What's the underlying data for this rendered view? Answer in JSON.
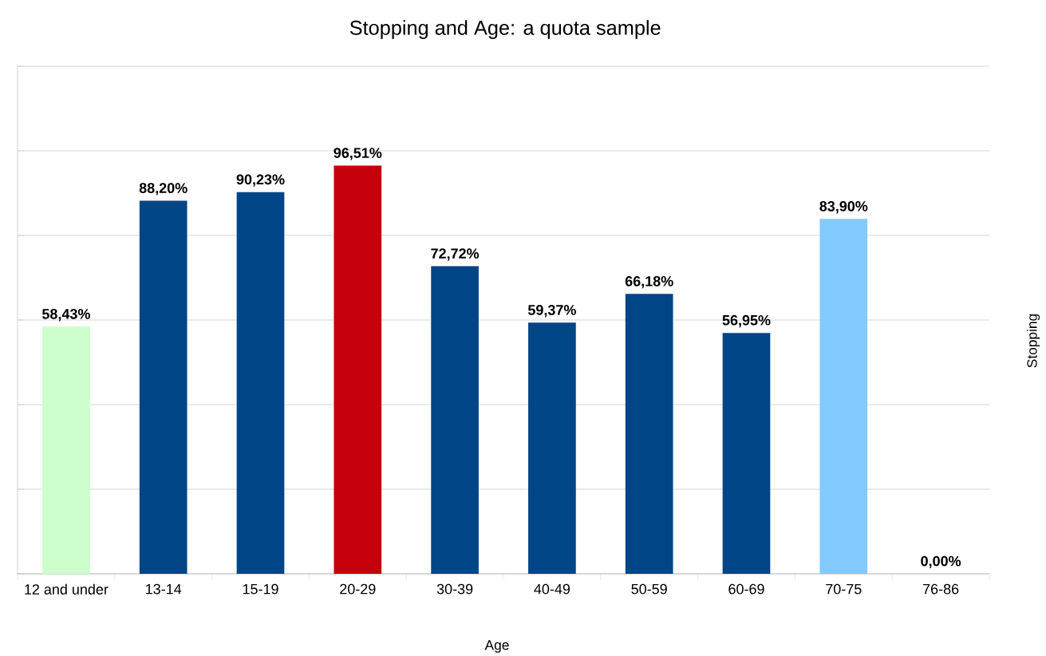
{
  "chart_data": {
    "type": "bar",
    "title": "Stopping and Age: a quota sample",
    "xlabel": "Age",
    "ylabel": "Stopping",
    "categories": [
      "12 and under",
      "13-14",
      "15-19",
      "20-29",
      "30-39",
      "40-49",
      "50-59",
      "60-69",
      "70-75",
      "76-86"
    ],
    "values": [
      58.43,
      88.2,
      90.23,
      96.51,
      72.72,
      59.37,
      66.18,
      56.95,
      83.9,
      0.0
    ],
    "colors": [
      "#ccffcc",
      "#004586",
      "#004586",
      "#c5000b",
      "#004586",
      "#004586",
      "#004586",
      "#004586",
      "#83caff",
      "#004586"
    ],
    "value_labels": [
      "58,43%",
      "88,20%",
      "90,23%",
      "96,51%",
      "72,72%",
      "59,37%",
      "66,18%",
      "56,95%",
      "83,90%",
      "0,00%"
    ],
    "ylim": [
      0,
      120
    ],
    "yticks": [
      {
        "value": 0,
        "label": null
      },
      {
        "value": 20,
        "label": null
      },
      {
        "value": 40,
        "label": null
      },
      {
        "value": 60,
        "label": null
      },
      {
        "value": 80,
        "label": null
      },
      {
        "value": 100,
        "label": null
      },
      {
        "value": 120,
        "label": null
      }
    ],
    "grid": "y",
    "tick_labels": "x"
  }
}
